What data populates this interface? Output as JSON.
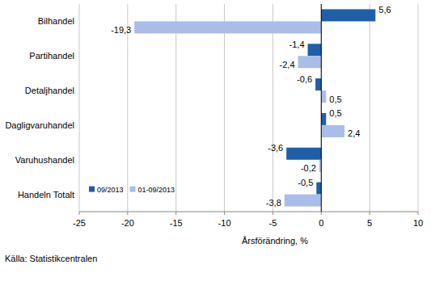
{
  "chart_data": {
    "type": "bar",
    "orientation": "horizontal",
    "categories": [
      "Bilhandel",
      "Partihandel",
      "Detaljhandel",
      "Dagligvaruhandel",
      "Varuhushandel",
      "Handeln Totalt"
    ],
    "series": [
      {
        "name": "09/2013",
        "color": "#1f5fa8",
        "values": [
          5.6,
          -1.4,
          -0.6,
          0.5,
          -3.6,
          -0.5
        ],
        "value_labels": [
          "5,6",
          "-1,4",
          "-0,6",
          "0,5",
          "-3,6",
          "-0,5"
        ]
      },
      {
        "name": "01-09/2013",
        "color": "#a9bde8",
        "values": [
          -19.3,
          -2.4,
          0.5,
          2.4,
          -0.2,
          -3.8
        ],
        "value_labels": [
          "-19,3",
          "-2,4",
          "0,5",
          "2,4",
          "-0,2",
          "-3,8"
        ]
      }
    ],
    "xlim": [
      -25,
      10
    ],
    "xticks": [
      -25,
      -20,
      -15,
      -10,
      -5,
      0,
      5,
      10
    ],
    "x_label": "Årsförändring, %",
    "annotations": [
      "Källa: Statistikcentralen"
    ],
    "grid": true,
    "data_labels": true,
    "legend": "bottom-left"
  }
}
